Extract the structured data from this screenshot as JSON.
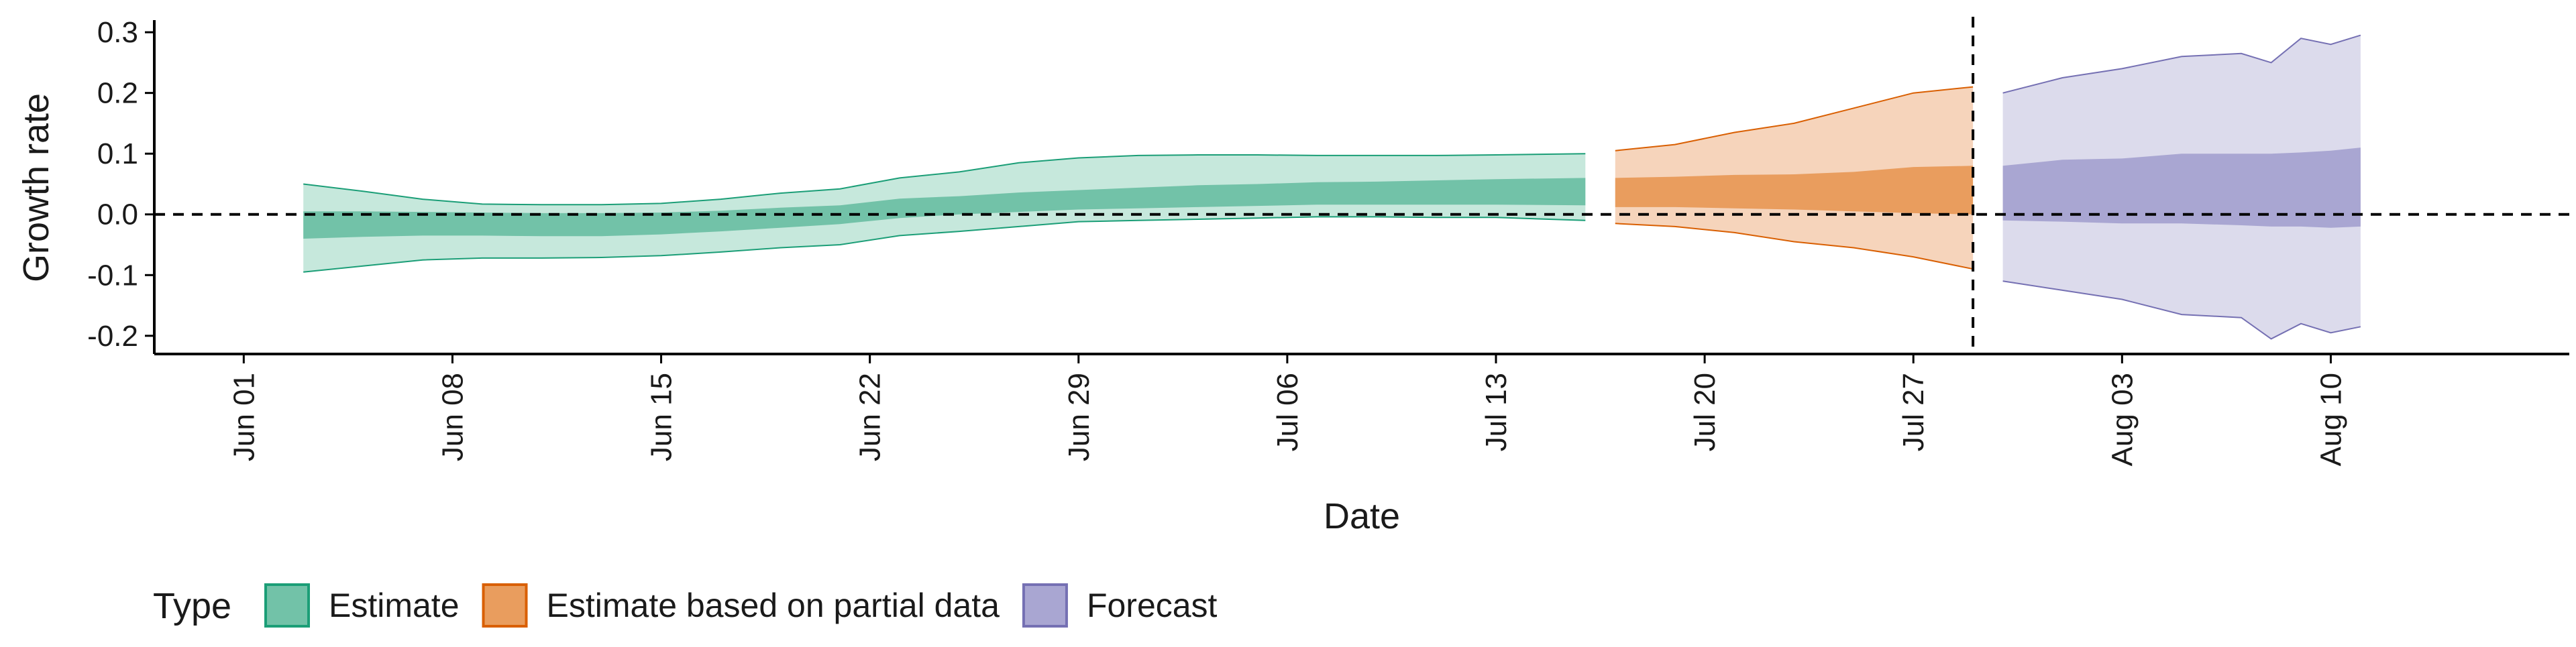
{
  "chart_data": {
    "type": "area",
    "title": "",
    "xlabel": "Date",
    "ylabel": "Growth rate",
    "x_axis": {
      "type": "date",
      "range": [
        "2020-05-29",
        "2020-08-18"
      ],
      "ticks": [
        {
          "date": "2020-06-01",
          "label": "Jun 01"
        },
        {
          "date": "2020-06-08",
          "label": "Jun 08"
        },
        {
          "date": "2020-06-15",
          "label": "Jun 15"
        },
        {
          "date": "2020-06-22",
          "label": "Jun 22"
        },
        {
          "date": "2020-06-29",
          "label": "Jun 29"
        },
        {
          "date": "2020-07-06",
          "label": "Jul 06"
        },
        {
          "date": "2020-07-13",
          "label": "Jul 13"
        },
        {
          "date": "2020-07-20",
          "label": "Jul 20"
        },
        {
          "date": "2020-07-27",
          "label": "Jul 27"
        },
        {
          "date": "2020-08-03",
          "label": "Aug 03"
        },
        {
          "date": "2020-08-10",
          "label": "Aug 10"
        }
      ]
    },
    "y_axis": {
      "range": [
        -0.23,
        0.32
      ],
      "ticks": [
        {
          "value": 0.3,
          "label": "0.3"
        },
        {
          "value": 0.2,
          "label": "0.2"
        },
        {
          "value": 0.1,
          "label": "0.1"
        },
        {
          "value": 0.0,
          "label": "0.0"
        },
        {
          "value": -0.1,
          "label": "-0.1"
        },
        {
          "value": -0.2,
          "label": "-0.2"
        }
      ]
    },
    "reference_lines": {
      "horizontal_y": 0,
      "vertical_date": "2020-07-29"
    },
    "grid": false,
    "legend": {
      "title": "Type",
      "position": "bottom-left",
      "entries": [
        {
          "label": "Estimate",
          "fill": "#72c2a8",
          "stroke": "#1b9e77"
        },
        {
          "label": "Estimate based on partial data",
          "fill": "#e99d5e",
          "stroke": "#d95f02"
        },
        {
          "label": "Forecast",
          "fill": "#a9a6d2",
          "stroke": "#7570b3"
        }
      ]
    },
    "series": [
      {
        "name": "Estimate",
        "outer_color": "#c6e8dc",
        "inner_color": "#72c2a8",
        "line_color": "#1b9e77",
        "points": [
          {
            "date": "2020-06-03",
            "lower90": -0.095,
            "lower50": -0.04,
            "upper50": 0.005,
            "upper90": 0.05
          },
          {
            "date": "2020-06-05",
            "lower90": -0.085,
            "lower50": -0.037,
            "upper50": 0.005,
            "upper90": 0.038
          },
          {
            "date": "2020-06-07",
            "lower90": -0.075,
            "lower50": -0.035,
            "upper50": 0.004,
            "upper90": 0.025
          },
          {
            "date": "2020-06-09",
            "lower90": -0.072,
            "lower50": -0.035,
            "upper50": 0.003,
            "upper90": 0.017
          },
          {
            "date": "2020-06-11",
            "lower90": -0.072,
            "lower50": -0.036,
            "upper50": 0.002,
            "upper90": 0.016
          },
          {
            "date": "2020-06-13",
            "lower90": -0.071,
            "lower50": -0.036,
            "upper50": 0.002,
            "upper90": 0.016
          },
          {
            "date": "2020-06-15",
            "lower90": -0.068,
            "lower50": -0.033,
            "upper50": 0.003,
            "upper90": 0.018
          },
          {
            "date": "2020-06-17",
            "lower90": -0.062,
            "lower50": -0.028,
            "upper50": 0.006,
            "upper90": 0.025
          },
          {
            "date": "2020-06-19",
            "lower90": -0.055,
            "lower50": -0.022,
            "upper50": 0.011,
            "upper90": 0.035
          },
          {
            "date": "2020-06-21",
            "lower90": -0.05,
            "lower50": -0.016,
            "upper50": 0.015,
            "upper90": 0.042
          },
          {
            "date": "2020-06-23",
            "lower90": -0.035,
            "lower50": -0.006,
            "upper50": 0.026,
            "upper90": 0.06
          },
          {
            "date": "2020-06-25",
            "lower90": -0.028,
            "lower50": 0.0,
            "upper50": 0.03,
            "upper90": 0.07
          },
          {
            "date": "2020-06-27",
            "lower90": -0.02,
            "lower50": 0.004,
            "upper50": 0.036,
            "upper90": 0.085
          },
          {
            "date": "2020-06-29",
            "lower90": -0.012,
            "lower50": 0.008,
            "upper50": 0.04,
            "upper90": 0.093
          },
          {
            "date": "2020-07-01",
            "lower90": -0.01,
            "lower50": 0.01,
            "upper50": 0.044,
            "upper90": 0.097
          },
          {
            "date": "2020-07-03",
            "lower90": -0.008,
            "lower50": 0.012,
            "upper50": 0.048,
            "upper90": 0.098
          },
          {
            "date": "2020-07-05",
            "lower90": -0.006,
            "lower50": 0.014,
            "upper50": 0.05,
            "upper90": 0.098
          },
          {
            "date": "2020-07-07",
            "lower90": -0.004,
            "lower50": 0.016,
            "upper50": 0.053,
            "upper90": 0.097
          },
          {
            "date": "2020-07-09",
            "lower90": -0.004,
            "lower50": 0.016,
            "upper50": 0.054,
            "upper90": 0.097
          },
          {
            "date": "2020-07-11",
            "lower90": -0.005,
            "lower50": 0.016,
            "upper50": 0.056,
            "upper90": 0.097
          },
          {
            "date": "2020-07-13",
            "lower90": -0.005,
            "lower50": 0.016,
            "upper50": 0.058,
            "upper90": 0.098
          },
          {
            "date": "2020-07-16",
            "lower90": -0.01,
            "lower50": 0.015,
            "upper50": 0.06,
            "upper90": 0.1
          }
        ]
      },
      {
        "name": "Estimate based on partial data",
        "outer_color": "#f6d4bb",
        "inner_color": "#e99d5e",
        "line_color": "#d95f02",
        "points": [
          {
            "date": "2020-07-17",
            "lower90": -0.015,
            "lower50": 0.012,
            "upper50": 0.06,
            "upper90": 0.105
          },
          {
            "date": "2020-07-19",
            "lower90": -0.02,
            "lower50": 0.012,
            "upper50": 0.062,
            "upper90": 0.115
          },
          {
            "date": "2020-07-21",
            "lower90": -0.03,
            "lower50": 0.01,
            "upper50": 0.065,
            "upper90": 0.135
          },
          {
            "date": "2020-07-23",
            "lower90": -0.045,
            "lower50": 0.008,
            "upper50": 0.066,
            "upper90": 0.15
          },
          {
            "date": "2020-07-25",
            "lower90": -0.055,
            "lower50": 0.005,
            "upper50": 0.07,
            "upper90": 0.175
          },
          {
            "date": "2020-07-27",
            "lower90": -0.07,
            "lower50": 0.002,
            "upper50": 0.078,
            "upper90": 0.2
          },
          {
            "date": "2020-07-29",
            "lower90": -0.09,
            "lower50": 0.0,
            "upper50": 0.08,
            "upper90": 0.21
          }
        ]
      },
      {
        "name": "Forecast",
        "outer_color": "#dcdbec",
        "inner_color": "#a9a6d2",
        "line_color": "#7570b3",
        "points": [
          {
            "date": "2020-07-30",
            "lower90": -0.11,
            "lower50": -0.01,
            "upper50": 0.08,
            "upper90": 0.2
          },
          {
            "date": "2020-08-01",
            "lower90": -0.125,
            "lower50": -0.012,
            "upper50": 0.09,
            "upper90": 0.225
          },
          {
            "date": "2020-08-03",
            "lower90": -0.14,
            "lower50": -0.015,
            "upper50": 0.092,
            "upper90": 0.24
          },
          {
            "date": "2020-08-05",
            "lower90": -0.165,
            "lower50": -0.015,
            "upper50": 0.1,
            "upper90": 0.26
          },
          {
            "date": "2020-08-07",
            "lower90": -0.17,
            "lower50": -0.018,
            "upper50": 0.1,
            "upper90": 0.265
          },
          {
            "date": "2020-08-08",
            "lower90": -0.205,
            "lower50": -0.02,
            "upper50": 0.1,
            "upper90": 0.25
          },
          {
            "date": "2020-08-09",
            "lower90": -0.18,
            "lower50": -0.02,
            "upper50": 0.102,
            "upper90": 0.29
          },
          {
            "date": "2020-08-10",
            "lower90": -0.195,
            "lower50": -0.022,
            "upper50": 0.105,
            "upper90": 0.28
          },
          {
            "date": "2020-08-11",
            "lower90": -0.185,
            "lower50": -0.02,
            "upper50": 0.11,
            "upper90": 0.295
          }
        ]
      }
    ]
  }
}
